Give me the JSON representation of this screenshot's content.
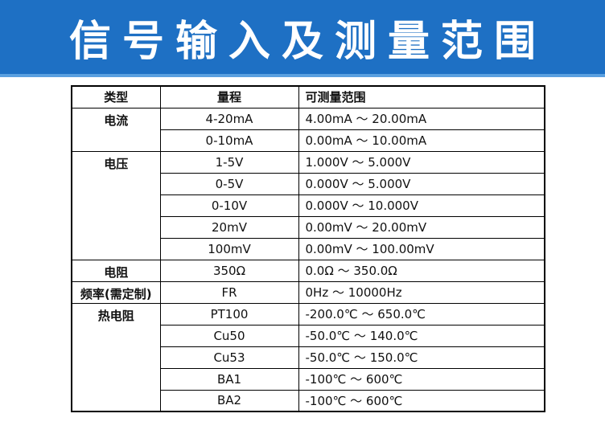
{
  "header": {
    "title": "信号输入及测量范围"
  },
  "table": {
    "columns": [
      "类型",
      "量程",
      "可测量范围"
    ],
    "groups": [
      {
        "label": "电流",
        "rows": [
          [
            "4-20mA",
            "4.00mA ～ 20.00mA"
          ],
          [
            "0-10mA",
            "0.00mA ～ 10.00mA"
          ]
        ]
      },
      {
        "label": "电压",
        "rows": [
          [
            "1-5V",
            "1.000V ～ 5.000V"
          ],
          [
            "0-5V",
            "0.000V ～ 5.000V"
          ],
          [
            "0-10V",
            "0.000V ～ 10.000V"
          ],
          [
            "20mV",
            "0.00mV ～ 20.00mV"
          ],
          [
            "100mV",
            "0.00mV ～ 100.00mV"
          ]
        ]
      },
      {
        "label": "电阻",
        "rows": [
          [
            "350Ω",
            "0.0Ω ～ 350.0Ω"
          ]
        ]
      },
      {
        "label": "频率(需定制)",
        "rows": [
          [
            "FR",
            "0Hz ～ 10000Hz"
          ]
        ]
      },
      {
        "label": "热电阻",
        "rows": [
          [
            "PT100",
            "-200.0℃ ～ 650.0℃"
          ],
          [
            "Cu50",
            "-50.0℃ ～ 140.0℃"
          ],
          [
            "Cu53",
            "-50.0℃ ～ 150.0℃"
          ],
          [
            "BA1",
            "-100℃ ～ 600℃"
          ],
          [
            "BA2",
            "-100℃ ～ 600℃"
          ]
        ]
      }
    ]
  }
}
